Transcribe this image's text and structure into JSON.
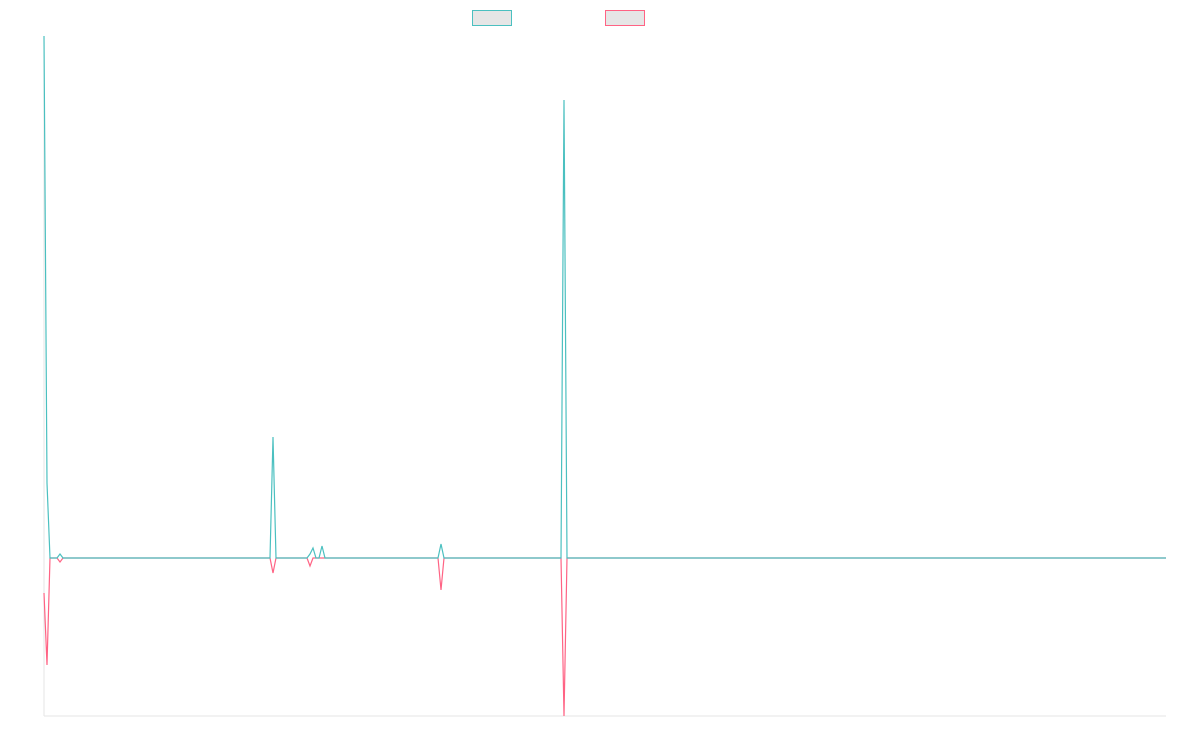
{
  "chart_data": {
    "type": "line",
    "x": [
      0,
      3,
      6,
      13,
      16,
      19,
      226,
      229,
      232,
      263,
      266,
      269,
      272,
      275,
      278,
      281,
      394,
      397,
      400,
      517,
      520,
      523,
      1122
    ],
    "xlim": [
      0,
      1122
    ],
    "ylim": [
      -158,
      522
    ],
    "series": [
      {
        "color": "#4bc0c0",
        "values": [
          522,
          75,
          0,
          0,
          4,
          0,
          0,
          121,
          0,
          0,
          4,
          10,
          0,
          0,
          12,
          0,
          0,
          14,
          0,
          0,
          458,
          0,
          0
        ]
      },
      {
        "color": "#ff6384",
        "values": [
          -35,
          -107,
          0,
          0,
          -4,
          0,
          0,
          -15,
          0,
          0,
          -8,
          0,
          0,
          0,
          0,
          0,
          0,
          -32,
          0,
          0,
          -158,
          0,
          0
        ]
      }
    ]
  }
}
